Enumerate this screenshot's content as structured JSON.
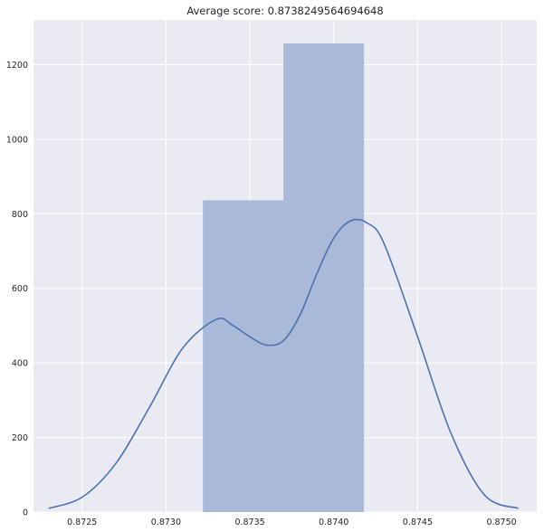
{
  "chart_data": {
    "type": "bar",
    "title": "Average score: 0.8738249564694648",
    "xlabel": "",
    "ylabel": "",
    "xlim": [
      0.87221,
      0.87521
    ],
    "ylim": [
      0,
      1320
    ],
    "x_ticks": [
      0.8725,
      0.873,
      0.8735,
      0.874,
      0.8745,
      0.875
    ],
    "x_tick_labels": [
      "0.8725",
      "0.8730",
      "0.8735",
      "0.8740",
      "0.8745",
      "0.8750"
    ],
    "y_ticks": [
      0,
      200,
      400,
      600,
      800,
      1000,
      1200
    ],
    "y_tick_labels": [
      "0",
      "200",
      "400",
      "600",
      "800",
      "1000",
      "1200"
    ],
    "grid": true,
    "background": "#eaeaf2",
    "grid_color": "#ffffff",
    "bar_color": "#a9b9d8",
    "line_color": "#4c72b0",
    "histogram": [
      {
        "x0": 0.87322,
        "x1": 0.8737,
        "height": 836
      },
      {
        "x0": 0.8737,
        "x1": 0.87418,
        "height": 1257
      }
    ],
    "kde": {
      "x": [
        0.8723,
        0.8725,
        0.8727,
        0.8729,
        0.8731,
        0.8733,
        0.8734,
        0.8735,
        0.8736,
        0.8737,
        0.8738,
        0.8739,
        0.874,
        0.8741,
        0.8742,
        0.8743,
        0.8745,
        0.8747,
        0.8749,
        0.8751
      ],
      "y": [
        10,
        40,
        130,
        280,
        440,
        517,
        500,
        470,
        448,
        460,
        530,
        640,
        735,
        781,
        775,
        720,
        470,
        210,
        45,
        10
      ]
    }
  }
}
